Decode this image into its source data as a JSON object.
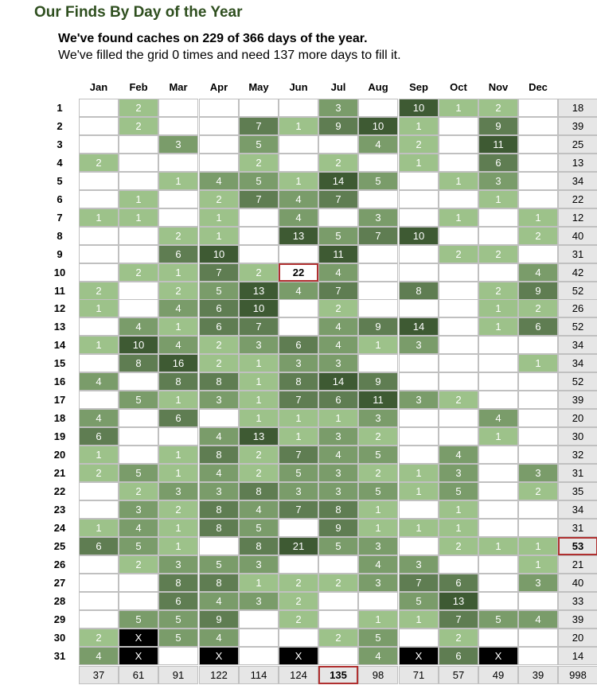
{
  "title": "Our Finds By Day of the Year",
  "summary": "We've found caches on 229 of 366 days of the year.",
  "detail": "We've filled the grid 0 times and need 137 more days to fill it.",
  "months": [
    "Jan",
    "Feb",
    "Mar",
    "Apr",
    "May",
    "Jun",
    "Jul",
    "Aug",
    "Sep",
    "Oct",
    "Nov",
    "Dec"
  ],
  "colors": {
    "level1": "#9dc28a",
    "level2": "#7a9c6a",
    "level3": "#5f7d52",
    "level4": "#3e5a33",
    "invalid": "#000000",
    "highlight": "#b03030",
    "total_bg": "#e6e6e6",
    "title": "#2f4f1f"
  },
  "rows": [
    {
      "day": "1",
      "cells": [
        "",
        "2",
        "",
        "",
        "",
        "",
        "3",
        "",
        "10",
        "1",
        "2",
        ""
      ],
      "total": "18"
    },
    {
      "day": "2",
      "cells": [
        "",
        "2",
        "",
        "",
        "7",
        "1",
        "9",
        "10",
        "1",
        "",
        "9",
        ""
      ],
      "total": "39"
    },
    {
      "day": "3",
      "cells": [
        "",
        "",
        "3",
        "",
        "5",
        "",
        "",
        "4",
        "2",
        "",
        "11",
        ""
      ],
      "total": "25"
    },
    {
      "day": "4",
      "cells": [
        "2",
        "",
        "",
        "",
        "2",
        "",
        "2",
        "",
        "1",
        "",
        "6",
        ""
      ],
      "total": "13"
    },
    {
      "day": "5",
      "cells": [
        "",
        "",
        "1",
        "4",
        "5",
        "1",
        "14",
        "5",
        "",
        "1",
        "3",
        ""
      ],
      "total": "34"
    },
    {
      "day": "6",
      "cells": [
        "",
        "1",
        "",
        "2",
        "7",
        "4",
        "7",
        "",
        "",
        "",
        "1",
        ""
      ],
      "total": "22"
    },
    {
      "day": "7",
      "cells": [
        "1",
        "1",
        "",
        "1",
        "",
        "4",
        "",
        "3",
        "",
        "1",
        "",
        "1"
      ],
      "total": "12"
    },
    {
      "day": "8",
      "cells": [
        "",
        "",
        "2",
        "1",
        "",
        "13",
        "5",
        "7",
        "10",
        "",
        "",
        "2"
      ],
      "total": "40"
    },
    {
      "day": "9",
      "cells": [
        "",
        "",
        "6",
        "10",
        "",
        "",
        "11",
        "",
        "",
        "2",
        "2",
        ""
      ],
      "total": "31"
    },
    {
      "day": "10",
      "cells": [
        "",
        "2",
        "1",
        "7",
        "2",
        "22",
        "4",
        "",
        "",
        "",
        "",
        "4"
      ],
      "total": "42"
    },
    {
      "day": "11",
      "cells": [
        "2",
        "",
        "2",
        "5",
        "13",
        "4",
        "7",
        "",
        "8",
        "",
        "2",
        "9"
      ],
      "total": "52"
    },
    {
      "day": "12",
      "cells": [
        "1",
        "",
        "4",
        "6",
        "10",
        "",
        "2",
        "",
        "",
        "",
        "1",
        "2"
      ],
      "total": "26"
    },
    {
      "day": "13",
      "cells": [
        "",
        "4",
        "1",
        "6",
        "7",
        "",
        "4",
        "9",
        "14",
        "",
        "1",
        "6"
      ],
      "total": "52"
    },
    {
      "day": "14",
      "cells": [
        "1",
        "10",
        "4",
        "2",
        "3",
        "6",
        "4",
        "1",
        "3",
        "",
        "",
        ""
      ],
      "total": "34"
    },
    {
      "day": "15",
      "cells": [
        "",
        "8",
        "16",
        "2",
        "1",
        "3",
        "3",
        "",
        "",
        "",
        "",
        "1"
      ],
      "total": "34"
    },
    {
      "day": "16",
      "cells": [
        "4",
        "",
        "8",
        "8",
        "1",
        "8",
        "14",
        "9",
        "",
        "",
        "",
        ""
      ],
      "total": "52"
    },
    {
      "day": "17",
      "cells": [
        "",
        "5",
        "1",
        "3",
        "1",
        "7",
        "6",
        "11",
        "3",
        "2",
        "",
        ""
      ],
      "total": "39"
    },
    {
      "day": "18",
      "cells": [
        "4",
        "",
        "6",
        "",
        "1",
        "1",
        "1",
        "3",
        "",
        "",
        "4",
        ""
      ],
      "total": "20"
    },
    {
      "day": "19",
      "cells": [
        "6",
        "",
        "",
        "4",
        "13",
        "1",
        "3",
        "2",
        "",
        "",
        "1",
        ""
      ],
      "total": "30"
    },
    {
      "day": "20",
      "cells": [
        "1",
        "",
        "1",
        "8",
        "2",
        "7",
        "4",
        "5",
        "",
        "4",
        "",
        ""
      ],
      "total": "32"
    },
    {
      "day": "21",
      "cells": [
        "2",
        "5",
        "1",
        "4",
        "2",
        "5",
        "3",
        "2",
        "1",
        "3",
        "",
        "3"
      ],
      "total": "31"
    },
    {
      "day": "22",
      "cells": [
        "",
        "2",
        "3",
        "3",
        "8",
        "3",
        "3",
        "5",
        "1",
        "5",
        "",
        "2"
      ],
      "total": "35"
    },
    {
      "day": "23",
      "cells": [
        "",
        "3",
        "2",
        "8",
        "4",
        "7",
        "8",
        "1",
        "",
        "1",
        "",
        ""
      ],
      "total": "34"
    },
    {
      "day": "24",
      "cells": [
        "1",
        "4",
        "1",
        "8",
        "5",
        "",
        "9",
        "1",
        "1",
        "1",
        "",
        ""
      ],
      "total": "31"
    },
    {
      "day": "25",
      "cells": [
        "6",
        "5",
        "1",
        "",
        "8",
        "21",
        "5",
        "3",
        "",
        "2",
        "1",
        "1"
      ],
      "total": "53"
    },
    {
      "day": "26",
      "cells": [
        "",
        "2",
        "3",
        "5",
        "3",
        "",
        "",
        "4",
        "3",
        "",
        "",
        "1"
      ],
      "total": "21"
    },
    {
      "day": "27",
      "cells": [
        "",
        "",
        "8",
        "8",
        "1",
        "2",
        "2",
        "3",
        "7",
        "6",
        "",
        "3"
      ],
      "total": "40"
    },
    {
      "day": "28",
      "cells": [
        "",
        "",
        "6",
        "4",
        "3",
        "2",
        "",
        "",
        "5",
        "13",
        "",
        ""
      ],
      "total": "33"
    },
    {
      "day": "29",
      "cells": [
        "",
        "5",
        "5",
        "9",
        "",
        "2",
        "",
        "1",
        "1",
        "7",
        "5",
        "4"
      ],
      "total": "39"
    },
    {
      "day": "30",
      "cells": [
        "2",
        "X",
        "5",
        "4",
        "",
        "",
        "2",
        "5",
        "",
        "2",
        "",
        ""
      ],
      "total": "20"
    },
    {
      "day": "31",
      "cells": [
        "4",
        "X",
        "",
        "X",
        "",
        "X",
        "",
        "4",
        "X",
        "6",
        "X",
        ""
      ],
      "total": "14"
    }
  ],
  "month_totals": [
    "37",
    "61",
    "91",
    "122",
    "114",
    "124",
    "135",
    "98",
    "71",
    "57",
    "49",
    "39"
  ],
  "grand_total": "998",
  "highlights": {
    "cell": {
      "day": "10",
      "month": "Jun"
    },
    "day_total": "25",
    "month_total": "Jul"
  }
}
